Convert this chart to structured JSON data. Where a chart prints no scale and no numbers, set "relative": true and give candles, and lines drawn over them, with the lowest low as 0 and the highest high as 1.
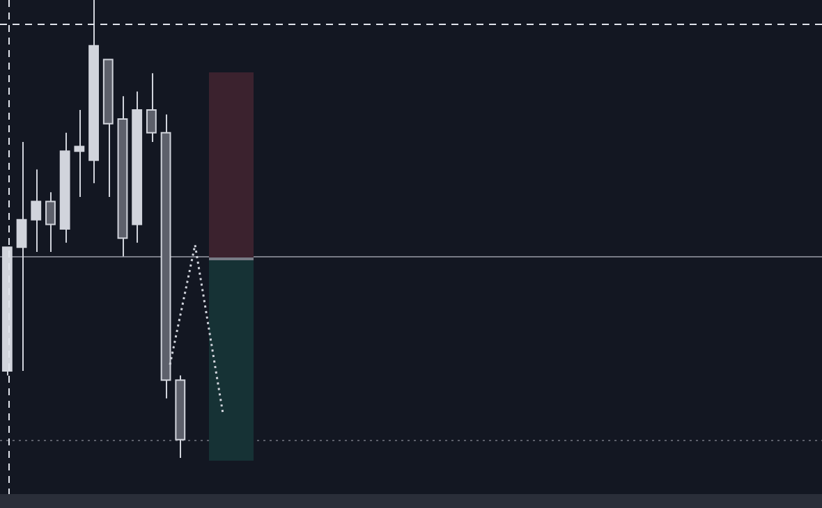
{
  "chart_data": {
    "type": "candlestick",
    "relative": true,
    "legend": false,
    "categories": [
      null,
      null,
      null,
      null,
      null,
      null,
      null,
      null,
      null,
      null,
      null,
      null,
      null,
      null,
      null,
      null,
      null,
      null,
      null,
      null,
      null,
      null,
      null,
      null,
      null,
      null,
      null,
      null,
      null,
      null,
      null,
      null,
      null,
      null,
      null,
      null,
      null,
      null,
      null,
      null,
      null,
      null,
      null,
      null,
      null,
      null,
      null,
      null,
      null,
      null,
      null,
      null,
      null,
      null,
      null,
      null,
      null
    ],
    "ohlc": [
      [
        0.19,
        0.46,
        0.18,
        0.46
      ],
      [
        0.46,
        0.69,
        0.19,
        0.52
      ],
      [
        0.52,
        0.63,
        0.45,
        0.56
      ],
      [
        0.56,
        0.58,
        0.45,
        0.51
      ],
      [
        0.5,
        0.71,
        0.47,
        0.67
      ],
      [
        0.67,
        0.76,
        0.57,
        0.68
      ],
      [
        0.65,
        1,
        0.6,
        0.9
      ],
      [
        0.87,
        0.87,
        0.57,
        0.73
      ],
      [
        0.74,
        0.79,
        0.44,
        0.48
      ],
      [
        0.51,
        0.8,
        0.47,
        0.76
      ],
      [
        0.76,
        0.84,
        0.69,
        0.71
      ],
      [
        0.71,
        0.75,
        0.13,
        0.17
      ],
      [
        0.17,
        0.18,
        0,
        0.04
      ],
      null,
      null,
      null,
      null,
      null,
      null,
      null,
      null,
      null,
      null,
      null,
      null,
      null,
      null,
      null,
      null,
      null,
      null,
      null,
      null,
      null,
      null,
      null,
      null,
      null,
      null,
      null,
      null,
      null,
      null,
      null,
      null,
      null,
      null,
      null,
      null,
      null,
      null,
      null,
      null,
      null,
      null,
      null,
      null
    ],
    "ref_lines": [
      {
        "axis": "y",
        "value": 0.44,
        "color": "#787b86",
        "line_style": "solid"
      },
      {
        "axis": "y",
        "value": 0.04,
        "color": "#5d606b",
        "line_style": "dotted"
      }
    ]
  }
}
